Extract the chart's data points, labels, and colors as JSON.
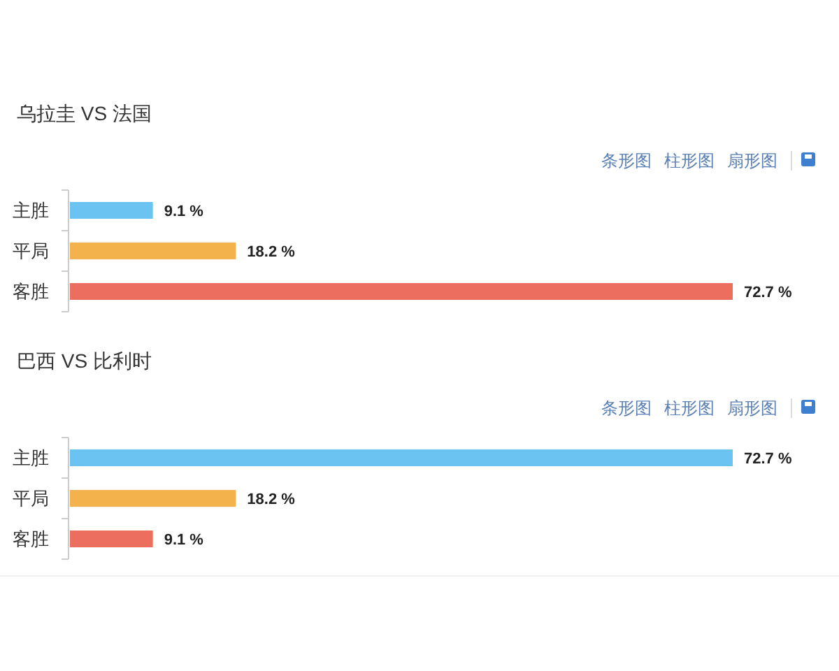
{
  "chart_data": [
    {
      "type": "bar",
      "orientation": "horizontal",
      "title": "乌拉圭 VS 法国",
      "categories": [
        "主胜",
        "平局",
        "客胜"
      ],
      "values": [
        9.1,
        18.2,
        72.7
      ],
      "value_labels": [
        "9.1 %",
        "18.2 %",
        "72.7 %"
      ],
      "colors": [
        "#6ac3f0",
        "#f4b24c",
        "#ec6e5e"
      ],
      "annotations": [
        "条形图",
        "柱形图",
        "扇形图"
      ]
    },
    {
      "type": "bar",
      "orientation": "horizontal",
      "title": "巴西 VS 比利时",
      "categories": [
        "主胜",
        "平局",
        "客胜"
      ],
      "values": [
        72.7,
        18.2,
        9.1
      ],
      "value_labels": [
        "72.7 %",
        "18.2 %",
        "9.1 %"
      ],
      "colors": [
        "#6ac3f0",
        "#f4b24c",
        "#ec6e5e"
      ],
      "annotations": [
        "条形图",
        "柱形图",
        "扇形图"
      ]
    }
  ]
}
